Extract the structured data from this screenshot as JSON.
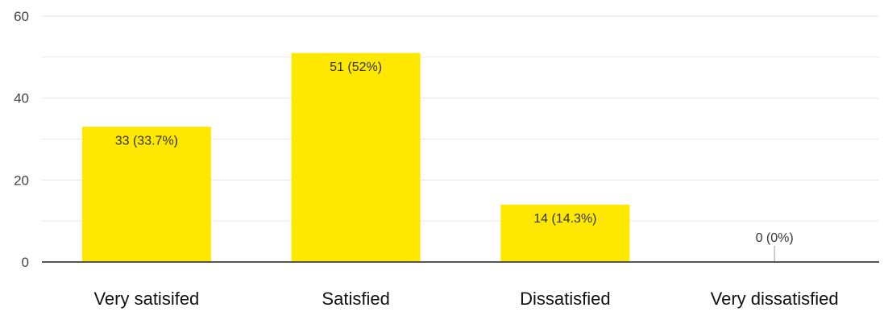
{
  "chart_data": {
    "type": "bar",
    "categories": [
      "Very satisifed",
      "Satisfied",
      "Dissatisfied",
      "Very dissatisfied"
    ],
    "values": [
      33,
      51,
      14,
      0
    ],
    "data_labels": [
      "33 (33.7%)",
      "51 (52%)",
      "14 (14.3%)",
      "0 (0%)"
    ],
    "ylim": [
      0,
      60
    ],
    "yticks": [
      "0",
      "20",
      "40",
      "60"
    ],
    "ytick_values": [
      0,
      20,
      40,
      60
    ],
    "minor_grid_values": [
      10,
      30,
      50
    ],
    "grid": true,
    "legend": "none",
    "bar_color": "#FFE800",
    "axis_color": "#555555",
    "grid_color": "#e6e6e6"
  }
}
